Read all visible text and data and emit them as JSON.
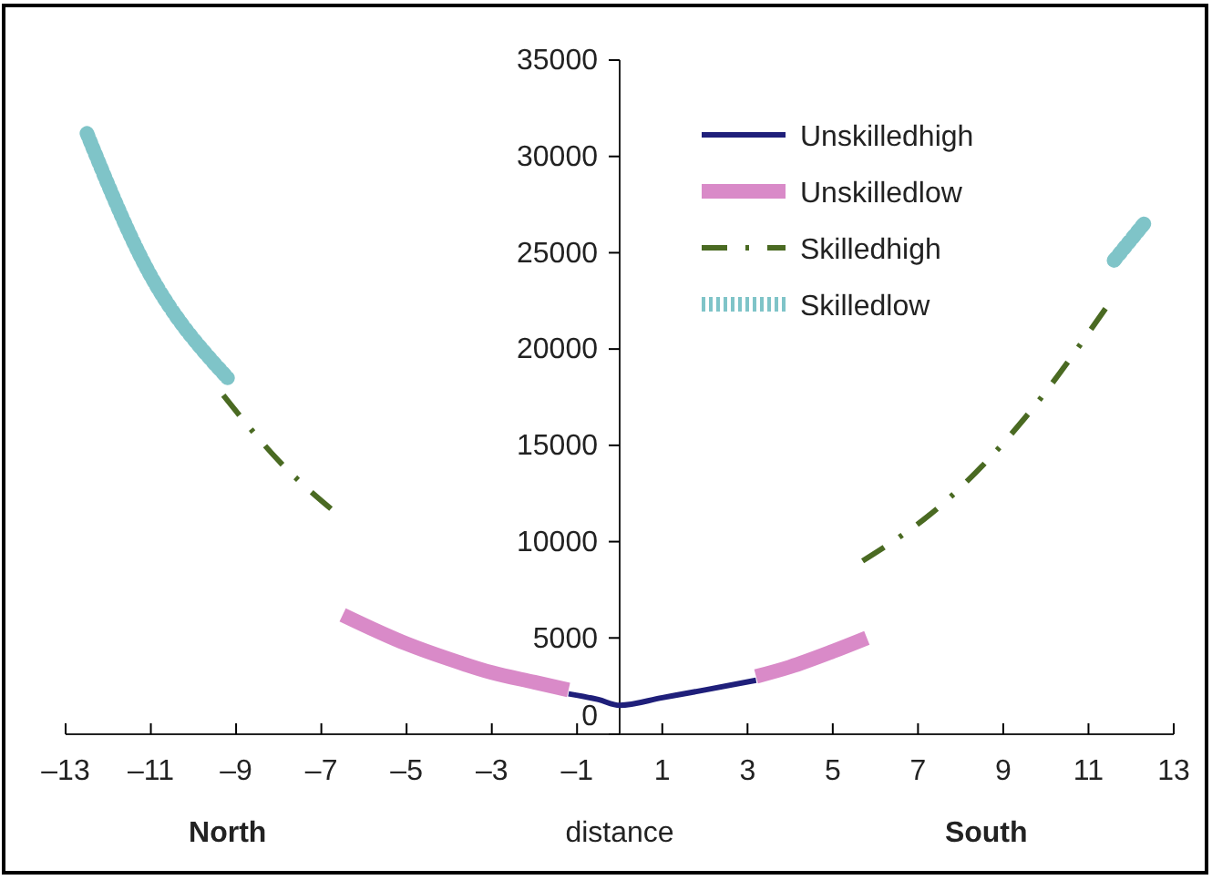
{
  "chart_data": {
    "type": "line",
    "xlabel": "distance",
    "annotations": [
      "North",
      "South"
    ],
    "xlim": [
      -13,
      13
    ],
    "xticks": [
      {
        "value": -13,
        "label": "–13"
      },
      {
        "value": -11,
        "label": "–11"
      },
      {
        "value": -9,
        "label": "–9"
      },
      {
        "value": -7,
        "label": "–7"
      },
      {
        "value": -5,
        "label": "–5"
      },
      {
        "value": -3,
        "label": "–3"
      },
      {
        "value": -1,
        "label": "–1"
      },
      1,
      3,
      5,
      7,
      9,
      11,
      13
    ],
    "ylim": [
      0,
      35000
    ],
    "yticks": [
      0,
      5000,
      10000,
      15000,
      20000,
      25000,
      30000,
      35000
    ],
    "grid": false,
    "legend": "top right",
    "marker": "none",
    "series": [
      {
        "name": "Unskilledhigh",
        "color": "#1f1f7a",
        "line_style": "solid",
        "x": [
          -1.2,
          -0.5,
          0,
          1,
          2,
          3.2
        ],
        "values": [
          2100,
          1800,
          1500,
          1900,
          2300,
          2800
        ]
      },
      {
        "name": "Unskilledlow",
        "color": "#d98ac8",
        "line_style": "solid",
        "x": [
          -6.5,
          -5,
          -4,
          -3,
          -2,
          -1.2,
          0,
          3.2,
          4,
          5,
          5.8
        ],
        "values": [
          6200,
          4700,
          3900,
          3200,
          2700,
          2300,
          null,
          3000,
          3500,
          4300,
          5000
        ]
      },
      {
        "name": "Skilledhigh",
        "color": "#4a6a22",
        "line_style": "dashed",
        "x": [
          -9.3,
          -8,
          -6.5,
          0,
          5.7,
          7.6,
          9.5,
          11.4
        ],
        "values": [
          17600,
          14200,
          11200,
          null,
          9000,
          12000,
          16400,
          22100
        ]
      },
      {
        "name": "Skilledlow",
        "color": "#7fc4c8",
        "line_style": "dotted",
        "x": [
          -12.5,
          -11.1,
          -9.2,
          0,
          11.6,
          12.3
        ],
        "values": [
          31200,
          24200,
          18500,
          null,
          24600,
          26500
        ]
      }
    ]
  }
}
